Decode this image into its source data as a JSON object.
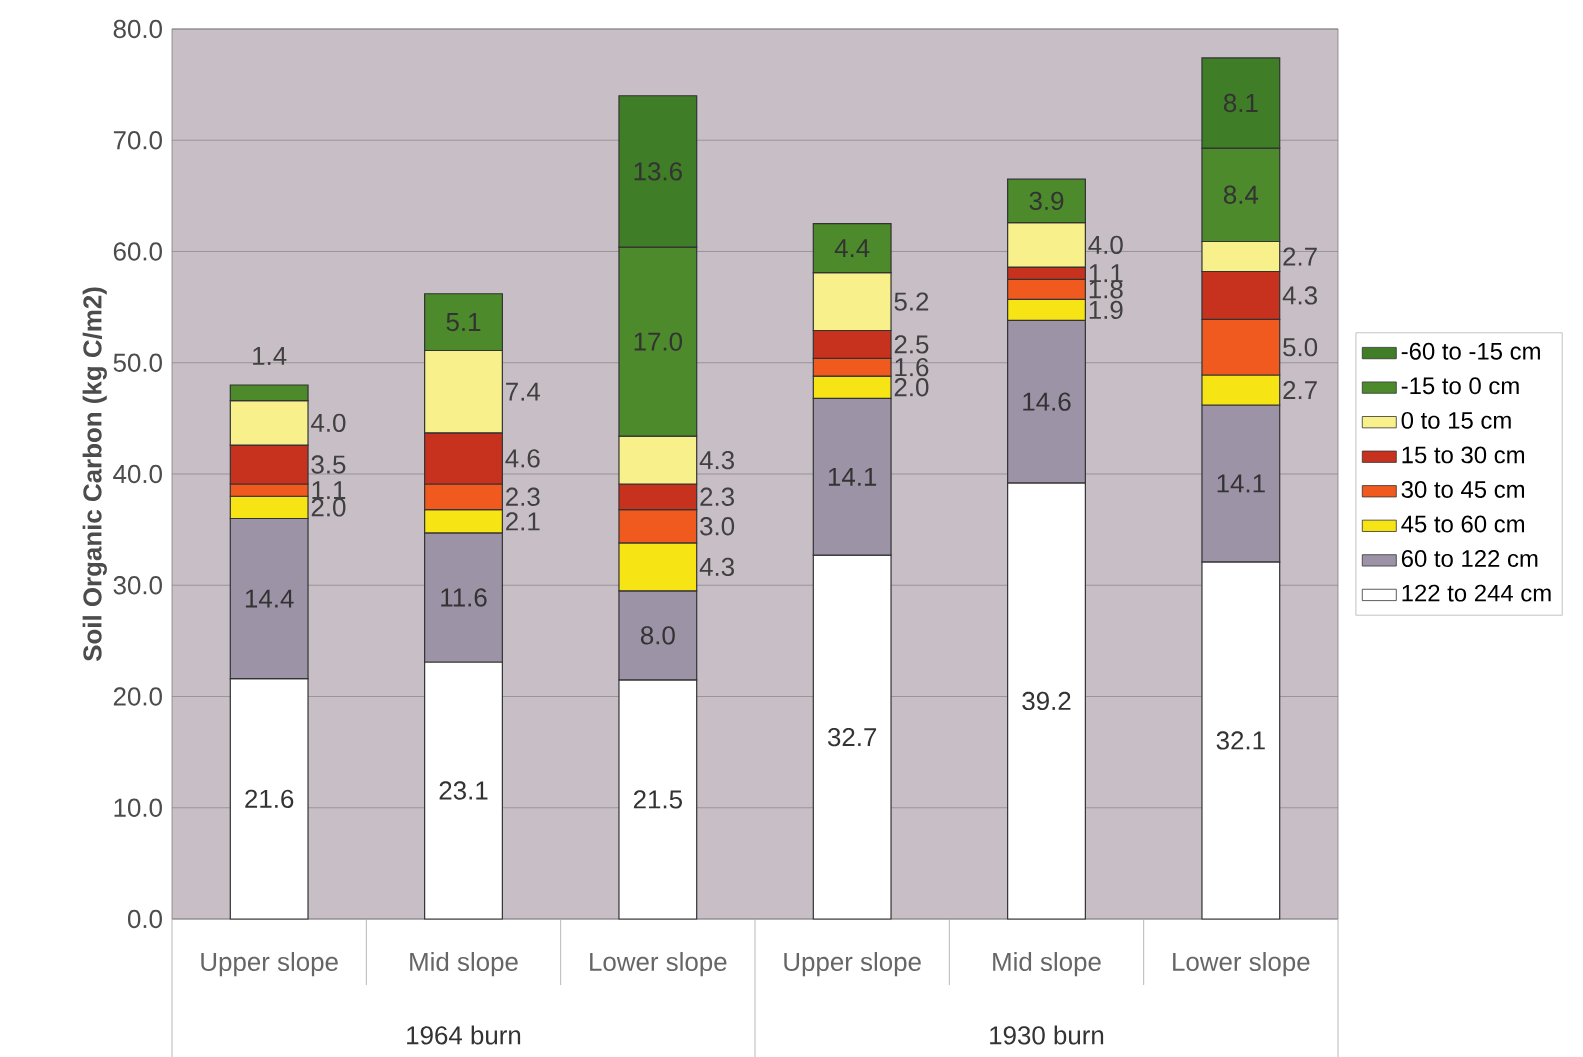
{
  "chart_data": {
    "type": "bar",
    "stacked": true,
    "ylabel": "Soil Organic Carbon (kg C/m2)",
    "categories": [
      "Upper slope",
      "Mid slope",
      "Lower slope",
      "Upper slope",
      "Mid slope",
      "Lower slope"
    ],
    "series": [
      {
        "name": "122 to 244 cm",
        "color": "#ffffff",
        "values": [
          21.6,
          23.1,
          21.5,
          32.7,
          39.2,
          32.1
        ],
        "value_labels": [
          "21.6",
          "23.1",
          "21.5",
          "32.7",
          "39.2",
          "32.1"
        ]
      },
      {
        "name": "60 to 122 cm",
        "color": "#9d93a6",
        "values": [
          14.4,
          11.6,
          8.0,
          14.1,
          14.6,
          14.1
        ],
        "value_labels": [
          "14.4",
          "11.6",
          "8.0",
          "14.1",
          "14.6",
          "14.1"
        ]
      },
      {
        "name": "45 to 60 cm",
        "color": "#f6e414",
        "values": [
          2.0,
          2.1,
          4.3,
          2.0,
          1.9,
          2.7
        ],
        "value_labels": [
          "2.0",
          "2.1",
          "4.3",
          "2.0",
          "1.9",
          "2.7"
        ]
      },
      {
        "name": "30 to 45 cm",
        "color": "#f05a1e",
        "values": [
          1.1,
          2.3,
          3.0,
          1.6,
          1.8,
          5.0
        ],
        "value_labels": [
          "1.1",
          "2.3",
          "3.0",
          "1.6",
          "1.8",
          "5.0"
        ]
      },
      {
        "name": "15 to 30 cm",
        "color": "#c7321f",
        "values": [
          3.5,
          4.6,
          2.3,
          2.5,
          1.1,
          4.3
        ],
        "value_labels": [
          "3.5",
          "4.6",
          "2.3",
          "2.5",
          "1.1",
          "4.3"
        ]
      },
      {
        "name": "0 to 15 cm",
        "color": "#f8f08a",
        "values": [
          4.0,
          7.4,
          4.3,
          5.2,
          4.0,
          2.7
        ],
        "value_labels": [
          "4.0",
          "7.4",
          "4.3",
          "5.2",
          "4.0",
          "2.7"
        ]
      },
      {
        "name": "-15 to 0 cm",
        "color": "#4c8a2c",
        "values": [
          1.4,
          5.1,
          17.0,
          4.4,
          3.9,
          8.4
        ],
        "value_labels": [
          "1.4",
          "5.1",
          "17.0",
          "4.4",
          "3.9",
          "8.4"
        ]
      },
      {
        "name": "-60 to -15 cm",
        "color": "#3f7d26",
        "values": [
          null,
          null,
          13.6,
          null,
          null,
          8.1
        ],
        "value_labels": [
          null,
          null,
          "13.6",
          null,
          null,
          "8.1"
        ]
      }
    ],
    "ylim": [
      0,
      80
    ],
    "yticks": [
      {
        "value": 0,
        "label": "0.0"
      },
      {
        "value": 10,
        "label": "10.0"
      },
      {
        "value": 20,
        "label": "20.0"
      },
      {
        "value": 30,
        "label": "30.0"
      },
      {
        "value": 40,
        "label": "40.0"
      },
      {
        "value": 50,
        "label": "50.0"
      },
      {
        "value": 60,
        "label": "60.0"
      },
      {
        "value": 70,
        "label": "70.0"
      },
      {
        "value": 80,
        "label": "80.0"
      }
    ],
    "grid": "y",
    "legend": "right",
    "annotations": [
      "1964 burn",
      "1930 burn"
    ]
  }
}
